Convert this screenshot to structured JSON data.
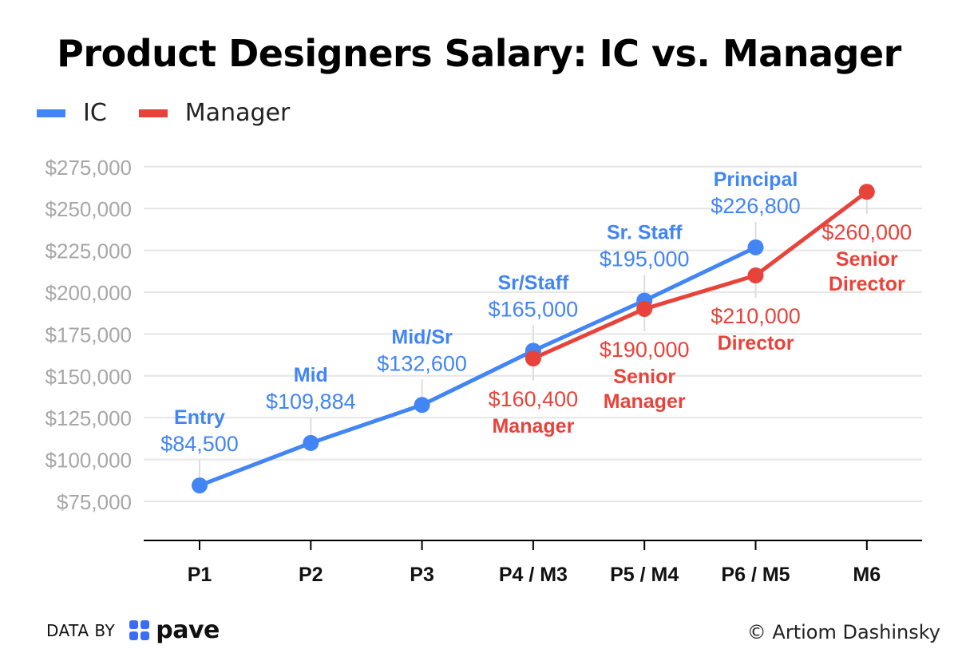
{
  "title": "Product Designers Salary: IC vs. Manager",
  "legend": [
    {
      "label": "IC",
      "color": "#4285f4"
    },
    {
      "label": "Manager",
      "color": "#e8433a"
    }
  ],
  "footer": {
    "data_by": "DATA BY",
    "brand": "pave",
    "credit": "© Artiom Dashinsky"
  },
  "chart_data": {
    "type": "line",
    "title": "Product Designers Salary: IC vs. Manager",
    "categories": [
      "P1",
      "P2",
      "P3",
      "P4 / M3",
      "P5 / M4",
      "P6 / M5",
      "M6"
    ],
    "ylim": [
      60000,
      280000
    ],
    "yticks": [
      75000,
      100000,
      125000,
      150000,
      175000,
      200000,
      225000,
      250000,
      275000
    ],
    "ytick_labels": [
      "$75,000",
      "$100,000",
      "$125,000",
      "$150,000",
      "$175,000",
      "$200,000",
      "$225,000",
      "$250,000",
      "$275,000"
    ],
    "grid": true,
    "legend_position": "top-left",
    "series": [
      {
        "name": "IC",
        "color": "#4285f4",
        "points": [
          {
            "category_index": 0,
            "value": 84500,
            "value_label": "$84,500",
            "level": "Entry"
          },
          {
            "category_index": 1,
            "value": 109884,
            "value_label": "$109,884",
            "level": "Mid"
          },
          {
            "category_index": 2,
            "value": 132600,
            "value_label": "$132,600",
            "level": "Mid/Sr"
          },
          {
            "category_index": 3,
            "value": 165000,
            "value_label": "$165,000",
            "level": "Sr/Staff"
          },
          {
            "category_index": 4,
            "value": 195000,
            "value_label": "$195,000",
            "level": "Sr. Staff"
          },
          {
            "category_index": 5,
            "value": 226800,
            "value_label": "$226,800",
            "level": "Principal"
          }
        ]
      },
      {
        "name": "Manager",
        "color": "#e8433a",
        "points": [
          {
            "category_index": 3,
            "value": 160400,
            "value_label": "$160,400",
            "level": "Manager"
          },
          {
            "category_index": 4,
            "value": 190000,
            "value_label": "$190,000",
            "level": "Senior Manager"
          },
          {
            "category_index": 5,
            "value": 210000,
            "value_label": "$210,000",
            "level": "Director"
          },
          {
            "category_index": 6,
            "value": 260000,
            "value_label": "$260,000",
            "level": "Senior Director"
          }
        ]
      }
    ]
  }
}
